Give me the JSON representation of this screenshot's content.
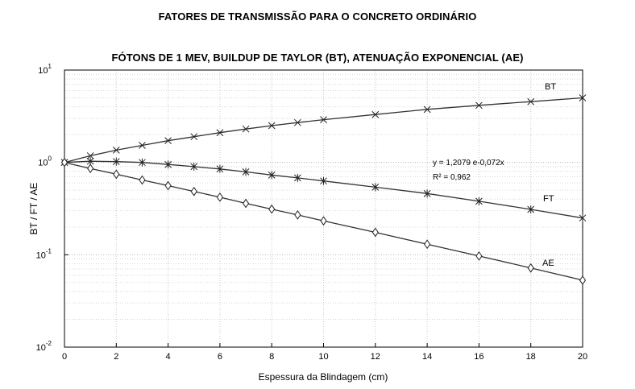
{
  "chart_data": {
    "type": "line",
    "title": "FATORES DE TRANSMISSÃO PARA O CONCRETO ORDINÁRIO",
    "subtitle": "FÓTONS DE 1 MEV, BUILDUP DE TAYLOR (BT), ATENUAÇÃO EXPONENCIAL (AE)",
    "xlabel": "Espessura da Blindagem (cm)",
    "ylabel": "BT / FT / AE",
    "xlim": [
      0,
      20
    ],
    "ylim": [
      0.01,
      10
    ],
    "yscale": "log",
    "grid": true,
    "x_ticks": [
      0,
      2,
      4,
      6,
      8,
      10,
      12,
      14,
      16,
      18,
      20
    ],
    "y_ticks": [
      {
        "base": "10",
        "exp": "-2",
        "value": 0.01
      },
      {
        "base": "10",
        "exp": "-1",
        "value": 0.1
      },
      {
        "base": "10",
        "exp": "0",
        "value": 1
      },
      {
        "base": "10",
        "exp": "1",
        "value": 10
      }
    ],
    "series": [
      {
        "name": "BT",
        "marker": "x",
        "x": [
          0,
          1,
          2,
          3,
          4,
          5,
          6,
          7,
          8,
          9,
          10,
          12,
          14,
          16,
          18,
          20
        ],
        "y": [
          1.0,
          1.18,
          1.36,
          1.53,
          1.72,
          1.9,
          2.1,
          2.3,
          2.5,
          2.7,
          2.9,
          3.3,
          3.75,
          4.15,
          4.55,
          5.0
        ]
      },
      {
        "name": "FT",
        "marker": "*",
        "x": [
          0,
          1,
          2,
          3,
          4,
          5,
          6,
          7,
          8,
          9,
          10,
          12,
          14,
          16,
          18,
          20
        ],
        "y": [
          1.0,
          1.03,
          1.02,
          1.0,
          0.95,
          0.9,
          0.85,
          0.79,
          0.73,
          0.68,
          0.63,
          0.54,
          0.46,
          0.38,
          0.31,
          0.25
        ]
      },
      {
        "name": "AE",
        "marker": "diamond",
        "x": [
          0,
          1,
          2,
          3,
          4,
          5,
          6,
          7,
          8,
          9,
          10,
          12,
          14,
          16,
          18,
          20
        ],
        "y": [
          1.0,
          0.86,
          0.745,
          0.645,
          0.56,
          0.485,
          0.42,
          0.36,
          0.312,
          0.27,
          0.233,
          0.175,
          0.13,
          0.097,
          0.072,
          0.053
        ]
      }
    ],
    "annotations": [
      "y = 1,2079 e-0,072x",
      "R² = 0,962"
    ]
  }
}
